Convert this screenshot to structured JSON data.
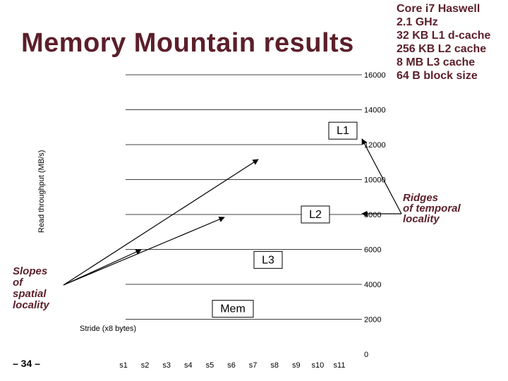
{
  "slide": {
    "title": "Memory Mountain results",
    "slide_number": "– 34 –",
    "specs": [
      "Core i7 Haswell",
      "2.1 GHz",
      "32 KB L1 d-cache",
      "256 KB L2 cache",
      "8 MB L3 cache",
      "64 B block size"
    ],
    "annotation_right": [
      "Ridges",
      "of temporal",
      "locality"
    ],
    "annotation_left": [
      "Slopes",
      "of",
      "spatial",
      "locality"
    ]
  },
  "chart_data": {
    "type": "area",
    "ylabel": "Read throughput (MB/s)",
    "xlabel": "Stride (x8 bytes)",
    "y_ticks": [
      0,
      2000,
      4000,
      6000,
      8000,
      10000,
      12000,
      14000,
      16000
    ],
    "ylim": [
      0,
      16000
    ],
    "x_ticks": [
      "s1",
      "s2",
      "s3",
      "s4",
      "s5",
      "s6",
      "s7",
      "s8",
      "s9",
      "s10",
      "s11"
    ],
    "grid": true,
    "region_labels": [
      {
        "text": "L1",
        "value": 12800
      },
      {
        "text": "L2",
        "value": 8000
      },
      {
        "text": "L3",
        "value": 5400
      },
      {
        "text": "Mem",
        "value": 2600
      }
    ],
    "colors": {
      "title": "#5b1f2a",
      "grid": "#000000",
      "label_box_border": "#000000"
    }
  }
}
